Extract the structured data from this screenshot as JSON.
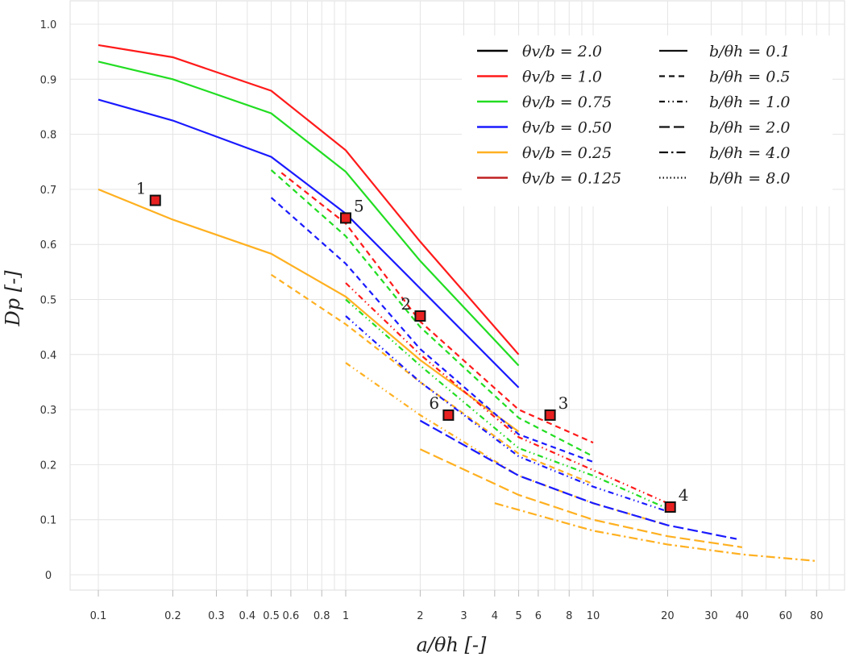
{
  "chart_data": {
    "type": "line",
    "xlabel": "a/θh [-]",
    "ylabel": "Dp [-]",
    "xscale": "log",
    "xlim": [
      0.075,
      100
    ],
    "ylim": [
      -0.03,
      1.05
    ],
    "grid": true,
    "legend_placement": "top-right",
    "x_ticks": [
      "0.1",
      "0.2",
      "0.3",
      "0.4",
      "0.5",
      "0.6",
      "0.8",
      "1",
      "2",
      "3",
      "4",
      "5",
      "6",
      "8",
      "10",
      "20",
      "30",
      "40",
      "60",
      "80"
    ],
    "y_ticks": [
      "0",
      "0.1",
      "0.2",
      "0.3",
      "0.4",
      "0.5",
      "0.6",
      "0.7",
      "0.8",
      "0.9",
      "1.0"
    ],
    "colors": {
      "2.0": "#000000",
      "1.0": "#ff1a1a",
      "0.75": "#22dd22",
      "0.50": "#1a1aff",
      "0.25": "#ffb020",
      "0.125": "#c02020"
    },
    "legend_color": [
      {
        "label": "θv/b = 2.0",
        "color": "#000000"
      },
      {
        "label": "θv/b = 1.0",
        "color": "#ff1a1a"
      },
      {
        "label": "θv/b = 0.75",
        "color": "#22dd22"
      },
      {
        "label": "θv/b = 0.50",
        "color": "#1a1aff"
      },
      {
        "label": "θv/b = 0.25",
        "color": "#ffb020"
      },
      {
        "label": "θv/b = 0.125",
        "color": "#c02020"
      }
    ],
    "legend_style": [
      {
        "label": "b/θh = 0.1",
        "style": "solid"
      },
      {
        "label": "b/θh = 0.5",
        "style": "dashed"
      },
      {
        "label": "b/θh = 1.0",
        "style": "dashdotdot"
      },
      {
        "label": "b/θh = 2.0",
        "style": "longdash"
      },
      {
        "label": "b/θh = 4.0",
        "style": "dashdot"
      },
      {
        "label": "b/θh = 8.0",
        "style": "dotted"
      }
    ],
    "series": [
      {
        "name": "θv/b=1.0, b/θh=0.1",
        "color": "#ff1a1a",
        "style": "solid",
        "x": [
          0.1,
          0.2,
          0.5,
          1,
          2,
          5
        ],
        "y": [
          0.962,
          0.94,
          0.879,
          0.771,
          0.605,
          0.4
        ]
      },
      {
        "name": "θv/b=0.75, b/θh=0.1",
        "color": "#22dd22",
        "style": "solid",
        "x": [
          0.1,
          0.2,
          0.5,
          1,
          2,
          5
        ],
        "y": [
          0.932,
          0.9,
          0.838,
          0.732,
          0.57,
          0.38
        ]
      },
      {
        "name": "θv/b=0.50, b/θh=0.1",
        "color": "#1a1aff",
        "style": "solid",
        "x": [
          0.1,
          0.2,
          0.5,
          1,
          2,
          5
        ],
        "y": [
          0.863,
          0.825,
          0.759,
          0.656,
          0.52,
          0.34
        ]
      },
      {
        "name": "θv/b=0.25, b/θh=0.1",
        "color": "#ffb020",
        "style": "solid",
        "x": [
          0.1,
          0.2,
          0.5,
          1,
          2,
          5
        ],
        "y": [
          0.7,
          0.645,
          0.583,
          0.505,
          0.39,
          0.26
        ]
      },
      {
        "name": "θv/b=1.0, b/θh=0.5",
        "color": "#ff1a1a",
        "style": "dashed",
        "x": [
          0.55,
          1,
          2,
          5,
          10
        ],
        "y": [
          0.73,
          0.638,
          0.46,
          0.3,
          0.24
        ]
      },
      {
        "name": "θv/b=0.75, b/θh=0.5",
        "color": "#22dd22",
        "style": "dashed",
        "x": [
          0.5,
          1,
          2,
          5,
          10
        ],
        "y": [
          0.735,
          0.615,
          0.45,
          0.285,
          0.215
        ]
      },
      {
        "name": "θv/b=0.50, b/θh=0.5",
        "color": "#1a1aff",
        "style": "dashed",
        "x": [
          0.5,
          1,
          2,
          5,
          10
        ],
        "y": [
          0.685,
          0.565,
          0.41,
          0.255,
          0.205
        ]
      },
      {
        "name": "θv/b=0.25, b/θh=0.5",
        "color": "#ffb020",
        "style": "dashed",
        "x": [
          0.5,
          1,
          2,
          5,
          10
        ],
        "y": [
          0.545,
          0.455,
          0.35,
          0.22,
          0.165
        ]
      },
      {
        "name": "θv/b=1.0, b/θh=1.0",
        "color": "#ff1a1a",
        "style": "dashdotdot",
        "x": [
          1,
          2,
          5,
          10,
          20
        ],
        "y": [
          0.53,
          0.4,
          0.25,
          0.19,
          0.13
        ]
      },
      {
        "name": "θv/b=0.75, b/θh=1.0",
        "color": "#22dd22",
        "style": "dashdotdot",
        "x": [
          1,
          2,
          5,
          10,
          20
        ],
        "y": [
          0.5,
          0.38,
          0.23,
          0.18,
          0.12
        ]
      },
      {
        "name": "θv/b=0.50, b/θh=1.0",
        "color": "#1a1aff",
        "style": "dashdotdot",
        "x": [
          1,
          2,
          5,
          10,
          20
        ],
        "y": [
          0.47,
          0.35,
          0.215,
          0.16,
          0.115
        ]
      },
      {
        "name": "θv/b=0.25, b/θh=1.0",
        "color": "#ffb020",
        "style": "dashdotdot",
        "x": [
          1,
          2,
          5,
          10,
          20
        ],
        "y": [
          0.385,
          0.29,
          0.18,
          0.13,
          0.09
        ]
      },
      {
        "name": "θv/b=0.50, b/θh=2.0",
        "color": "#1a1aff",
        "style": "longdash",
        "x": [
          2,
          5,
          10,
          20,
          38
        ],
        "y": [
          0.28,
          0.18,
          0.13,
          0.09,
          0.065
        ]
      },
      {
        "name": "θv/b=0.25, b/θh=2.0",
        "color": "#ffb020",
        "style": "longdash",
        "x": [
          2,
          5,
          10,
          20,
          40
        ],
        "y": [
          0.228,
          0.145,
          0.1,
          0.07,
          0.05
        ]
      },
      {
        "name": "θv/b=0.25, b/θh=4.0",
        "color": "#ffb020",
        "style": "dashdot",
        "x": [
          4,
          10,
          20,
          40,
          80
        ],
        "y": [
          0.13,
          0.08,
          0.055,
          0.037,
          0.025
        ]
      }
    ],
    "points": [
      {
        "label": "1",
        "x": 0.17,
        "y": 0.68
      },
      {
        "label": "5",
        "x": 1.0,
        "y": 0.648
      },
      {
        "label": "2",
        "x": 2.0,
        "y": 0.47
      },
      {
        "label": "6",
        "x": 2.6,
        "y": 0.29
      },
      {
        "label": "3",
        "x": 6.7,
        "y": 0.29
      },
      {
        "label": "4",
        "x": 20.5,
        "y": 0.123
      }
    ]
  }
}
